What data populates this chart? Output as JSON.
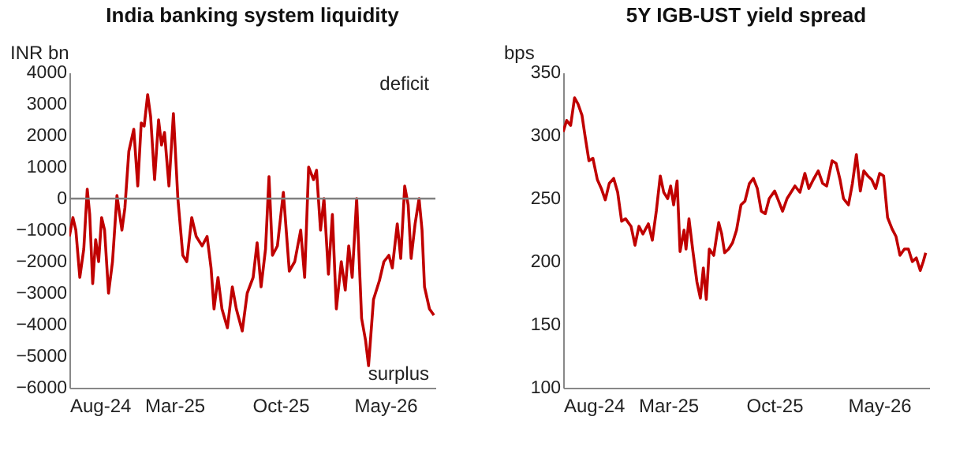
{
  "chart_data": [
    {
      "type": "line",
      "title": "India banking system liquidity",
      "ylabel": "INR bn",
      "annotations": [
        "deficit",
        "surplus"
      ],
      "x": [
        "2024-08-01",
        "2024-08-08",
        "2024-08-14",
        "2024-08-22",
        "2024-08-30",
        "2024-09-06",
        "2024-09-11",
        "2024-09-17",
        "2024-09-23",
        "2024-09-29",
        "2024-10-05",
        "2024-10-11",
        "2024-10-19",
        "2024-10-27",
        "2024-11-05",
        "2024-11-15",
        "2024-11-21",
        "2024-11-29",
        "2024-12-09",
        "2024-12-17",
        "2024-12-24",
        "2024-12-30",
        "2025-01-06",
        "2025-01-12",
        "2025-01-20",
        "2025-01-28",
        "2025-02-03",
        "2025-02-09",
        "2025-02-18",
        "2025-02-27",
        "2025-03-08",
        "2025-03-18",
        "2025-03-26",
        "2025-04-05",
        "2025-04-14",
        "2025-04-26",
        "2025-05-06",
        "2025-05-14",
        "2025-05-20",
        "2025-05-28",
        "2025-06-05",
        "2025-06-16",
        "2025-06-26",
        "2025-07-04",
        "2025-07-16",
        "2025-07-26",
        "2025-08-07",
        "2025-08-15",
        "2025-08-23",
        "2025-09-01",
        "2025-09-08",
        "2025-09-15",
        "2025-09-25",
        "2025-10-07",
        "2025-10-19",
        "2025-10-30",
        "2025-11-11",
        "2025-11-19",
        "2025-11-27",
        "2025-12-07",
        "2025-12-13",
        "2025-12-21",
        "2025-12-28",
        "2026-01-06",
        "2026-01-14",
        "2026-01-22",
        "2026-02-01",
        "2026-02-09",
        "2026-02-16",
        "2026-02-23",
        "2026-03-04",
        "2026-03-14",
        "2026-03-22",
        "2026-03-28",
        "2026-04-07",
        "2026-04-19",
        "2026-04-28",
        "2026-05-08",
        "2026-05-15",
        "2026-05-25",
        "2026-06-01",
        "2026-06-09",
        "2026-06-16",
        "2026-06-22",
        "2026-06-30",
        "2026-07-08",
        "2026-07-14",
        "2026-07-19",
        "2026-07-29",
        "2026-08-07"
      ],
      "series": [
        {
          "color": "#c00000",
          "values": [
            -1200,
            -600,
            -1000,
            -2500,
            -1600,
            300,
            -500,
            -2700,
            -1300,
            -2000,
            -600,
            -1000,
            -3000,
            -2000,
            100,
            -1000,
            -300,
            1500,
            2200,
            400,
            2400,
            2300,
            3300,
            2600,
            600,
            2500,
            1700,
            2100,
            400,
            2700,
            0,
            -1800,
            -2000,
            -600,
            -1200,
            -1500,
            -1200,
            -2200,
            -3500,
            -2500,
            -3500,
            -4100,
            -2800,
            -3500,
            -4200,
            -3000,
            -2500,
            -1400,
            -2800,
            -1600,
            700,
            -1800,
            -1500,
            200,
            -2300,
            -2000,
            -1000,
            -2500,
            1000,
            600,
            900,
            -1000,
            0,
            -2400,
            -500,
            -3500,
            -2000,
            -2900,
            -1500,
            -2500,
            0,
            -3800,
            -4500,
            -5300,
            -3200,
            -2600,
            -2000,
            -1800,
            -2200,
            -800,
            -1900,
            400,
            -200,
            -1900,
            -800,
            0,
            -1000,
            -2800,
            -3500,
            -3700
          ]
        }
      ],
      "xlim": [
        "2024-08-01",
        "2026-08-10"
      ],
      "xticks": [
        {
          "value": "2024-08-01",
          "label": "Aug-24"
        },
        {
          "value": "2025-03-01",
          "label": "Mar-25"
        },
        {
          "value": "2025-10-01",
          "label": "Oct-25"
        },
        {
          "value": "2026-05-01",
          "label": "May-26"
        }
      ],
      "ylim": [
        -6000,
        4000
      ],
      "yticks": [
        -6000,
        -5000,
        -4000,
        -3000,
        -2000,
        -1000,
        0,
        1000,
        2000,
        3000,
        4000
      ],
      "ref_lines": [
        {
          "axis": "y",
          "value": 0,
          "color": "#808080"
        }
      ]
    },
    {
      "type": "line",
      "title": "5Y IGB-UST yield spread",
      "ylabel": "bps",
      "x": [
        "2024-08-01",
        "2024-08-08",
        "2024-08-16",
        "2024-08-24",
        "2024-08-31",
        "2024-09-08",
        "2024-09-14",
        "2024-09-22",
        "2024-09-30",
        "2024-10-09",
        "2024-10-17",
        "2024-10-25",
        "2024-11-02",
        "2024-11-11",
        "2024-11-19",
        "2024-11-27",
        "2024-12-05",
        "2024-12-16",
        "2024-12-24",
        "2025-01-01",
        "2025-01-09",
        "2025-01-20",
        "2025-01-28",
        "2025-02-05",
        "2025-02-13",
        "2025-02-20",
        "2025-02-28",
        "2025-03-06",
        "2025-03-12",
        "2025-03-19",
        "2025-03-25",
        "2025-04-02",
        "2025-04-06",
        "2025-04-12",
        "2025-04-20",
        "2025-04-28",
        "2025-05-05",
        "2025-05-11",
        "2025-05-17",
        "2025-05-23",
        "2025-06-01",
        "2025-06-11",
        "2025-06-17",
        "2025-06-23",
        "2025-07-01",
        "2025-07-09",
        "2025-07-17",
        "2025-07-26",
        "2025-08-03",
        "2025-08-12",
        "2025-08-20",
        "2025-08-28",
        "2025-09-05",
        "2025-09-13",
        "2025-09-21",
        "2025-10-02",
        "2025-10-10",
        "2025-10-18",
        "2025-10-27",
        "2025-11-04",
        "2025-11-12",
        "2025-11-22",
        "2025-12-02",
        "2025-12-10",
        "2025-12-19",
        "2025-12-29",
        "2026-01-07",
        "2026-01-15",
        "2026-01-26",
        "2026-02-03",
        "2026-02-11",
        "2026-02-18",
        "2026-02-28",
        "2026-03-08",
        "2026-03-16",
        "2026-03-24",
        "2026-03-31",
        "2026-04-08",
        "2026-04-16",
        "2026-04-24",
        "2026-05-02",
        "2026-05-10",
        "2026-05-18",
        "2026-05-27",
        "2026-06-04",
        "2026-06-12",
        "2026-06-21",
        "2026-06-29",
        "2026-07-07",
        "2026-07-15",
        "2026-07-23",
        "2026-07-29",
        "2026-08-03"
      ],
      "series": [
        {
          "color": "#c00000",
          "values": [
            303,
            312,
            308,
            330,
            325,
            316,
            300,
            280,
            282,
            265,
            258,
            249,
            262,
            266,
            255,
            232,
            234,
            228,
            213,
            228,
            222,
            230,
            217,
            240,
            268,
            255,
            250,
            260,
            245,
            264,
            208,
            225,
            210,
            234,
            208,
            184,
            171,
            195,
            170,
            210,
            205,
            231,
            222,
            207,
            210,
            215,
            225,
            245,
            248,
            262,
            266,
            258,
            240,
            238,
            250,
            256,
            248,
            240,
            250,
            255,
            260,
            255,
            270,
            258,
            265,
            272,
            262,
            260,
            280,
            278,
            265,
            250,
            245,
            262,
            285,
            256,
            272,
            268,
            265,
            258,
            270,
            268,
            235,
            226,
            220,
            205,
            210,
            210,
            200,
            203,
            193,
            200,
            207
          ]
        }
      ],
      "xlim": [
        "2024-08-01",
        "2026-08-10"
      ],
      "xticks": [
        {
          "value": "2024-08-01",
          "label": "Aug-24"
        },
        {
          "value": "2025-03-01",
          "label": "Mar-25"
        },
        {
          "value": "2025-10-01",
          "label": "Oct-25"
        },
        {
          "value": "2026-05-01",
          "label": "May-26"
        }
      ],
      "ylim": [
        100,
        350
      ],
      "yticks": [
        100,
        150,
        200,
        250,
        300,
        350
      ]
    }
  ]
}
